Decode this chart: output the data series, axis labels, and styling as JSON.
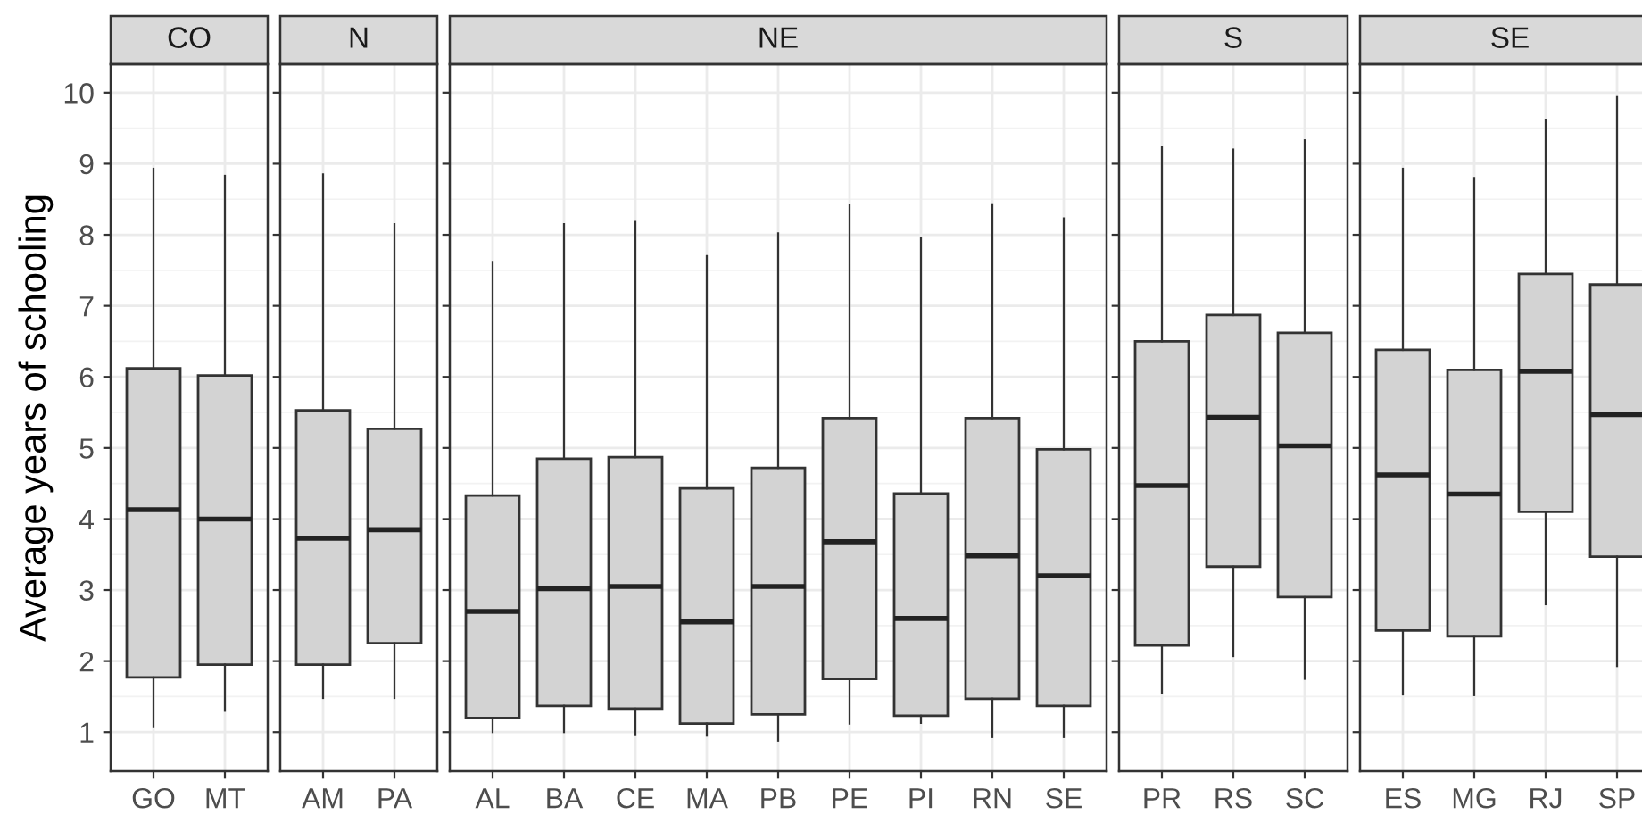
{
  "chart_data": [
    {
      "type": "box",
      "title": "CO",
      "ylabel": "Average years of schooling",
      "categories": [
        "GO",
        "MT"
      ],
      "color": "#d3d3d3",
      "ylim": [
        0.45,
        10.4
      ],
      "yticks": [
        1,
        2,
        3,
        4,
        5,
        6,
        7,
        8,
        9,
        10
      ],
      "grid": true,
      "boxes": [
        {
          "low": 1.07,
          "q1": 1.77,
          "median": 4.13,
          "q3": 6.12,
          "high": 8.93
        },
        {
          "low": 1.3,
          "q1": 1.95,
          "median": 4.0,
          "q3": 6.02,
          "high": 8.83
        }
      ]
    },
    {
      "type": "box",
      "title": "N",
      "categories": [
        "AM",
        "PA"
      ],
      "color": "#d3d3d3",
      "ylim": [
        0.45,
        10.4
      ],
      "tick_labels": "x",
      "grid": true,
      "boxes": [
        {
          "low": 1.48,
          "q1": 1.95,
          "median": 3.73,
          "q3": 5.53,
          "high": 8.85
        },
        {
          "low": 1.48,
          "q1": 2.25,
          "median": 3.85,
          "q3": 5.27,
          "high": 8.15
        }
      ]
    },
    {
      "type": "box",
      "title": "NE",
      "categories": [
        "AL",
        "BA",
        "CE",
        "MA",
        "PB",
        "PE",
        "PI",
        "RN",
        "SE"
      ],
      "color": "#d3d3d3",
      "ylim": [
        0.45,
        10.4
      ],
      "tick_labels": "x",
      "grid": true,
      "boxes": [
        {
          "low": 1.0,
          "q1": 1.2,
          "median": 2.7,
          "q3": 4.33,
          "high": 7.62
        },
        {
          "low": 1.0,
          "q1": 1.37,
          "median": 3.02,
          "q3": 4.85,
          "high": 8.15
        },
        {
          "low": 0.97,
          "q1": 1.33,
          "median": 3.05,
          "q3": 4.87,
          "high": 8.18
        },
        {
          "low": 0.95,
          "q1": 1.12,
          "median": 2.55,
          "q3": 4.43,
          "high": 7.7
        },
        {
          "low": 0.88,
          "q1": 1.25,
          "median": 3.05,
          "q3": 4.72,
          "high": 8.02
        },
        {
          "low": 1.12,
          "q1": 1.75,
          "median": 3.68,
          "q3": 5.42,
          "high": 8.42
        },
        {
          "low": 1.13,
          "q1": 1.23,
          "median": 2.6,
          "q3": 4.36,
          "high": 7.95
        },
        {
          "low": 0.93,
          "q1": 1.47,
          "median": 3.48,
          "q3": 5.42,
          "high": 8.43
        },
        {
          "low": 0.93,
          "q1": 1.37,
          "median": 3.2,
          "q3": 4.98,
          "high": 8.23
        }
      ]
    },
    {
      "type": "box",
      "title": "S",
      "categories": [
        "PR",
        "RS",
        "SC"
      ],
      "color": "#d3d3d3",
      "ylim": [
        0.45,
        10.4
      ],
      "tick_labels": "x",
      "grid": true,
      "boxes": [
        {
          "low": 1.55,
          "q1": 2.22,
          "median": 4.47,
          "q3": 6.5,
          "high": 9.23
        },
        {
          "low": 2.07,
          "q1": 3.33,
          "median": 5.43,
          "q3": 6.87,
          "high": 9.2
        },
        {
          "low": 1.75,
          "q1": 2.9,
          "median": 5.03,
          "q3": 6.62,
          "high": 9.33
        }
      ]
    },
    {
      "type": "box",
      "title": "SE",
      "categories": [
        "ES",
        "MG",
        "RJ",
        "SP"
      ],
      "color": "#d3d3d3",
      "ylim": [
        0.45,
        10.4
      ],
      "tick_labels": "x",
      "grid": true,
      "boxes": [
        {
          "low": 1.53,
          "q1": 2.43,
          "median": 4.62,
          "q3": 6.38,
          "high": 8.93
        },
        {
          "low": 1.52,
          "q1": 2.35,
          "median": 4.35,
          "q3": 6.1,
          "high": 8.8
        },
        {
          "low": 2.8,
          "q1": 4.1,
          "median": 6.08,
          "q3": 7.45,
          "high": 9.62
        },
        {
          "low": 1.93,
          "q1": 3.47,
          "median": 5.47,
          "q3": 7.3,
          "high": 9.95
        }
      ]
    }
  ]
}
